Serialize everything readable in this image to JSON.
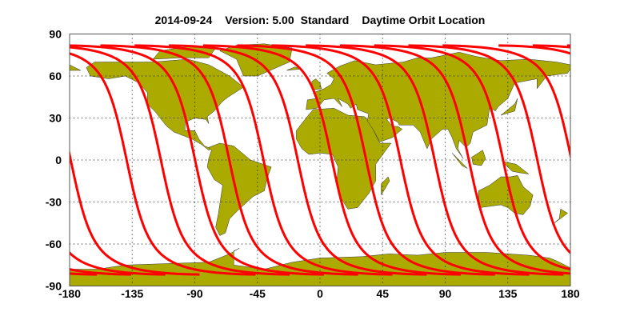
{
  "chart_data": {
    "type": "map",
    "title_date": "2014-09-24",
    "title_version": "Version: 5.00",
    "title_mode": "Standard",
    "title_subject": "Daytime Orbit Location",
    "projection": "equirectangular",
    "xlim": [
      -180,
      180
    ],
    "ylim": [
      -90,
      90
    ],
    "x_ticks": [
      "-180",
      "-135",
      "-90",
      "-45",
      "0",
      "45",
      "90",
      "135",
      "180"
    ],
    "y_ticks": [
      "90",
      "60",
      "30",
      "0",
      "-30",
      "-60",
      "-90"
    ],
    "grid": true,
    "grid_style": "dotted",
    "land_color": "#aaaa00",
    "track_color": "#ff0000",
    "orbit_tracks": {
      "equator_crossing_longitudes": [
        -139,
        -114.4,
        -89.8,
        -65.2,
        -40.6,
        -16,
        8.6,
        33.2,
        57.8,
        82.4,
        107,
        131.6,
        156.2,
        180.8
      ],
      "max_latitude": 81.8
    }
  }
}
